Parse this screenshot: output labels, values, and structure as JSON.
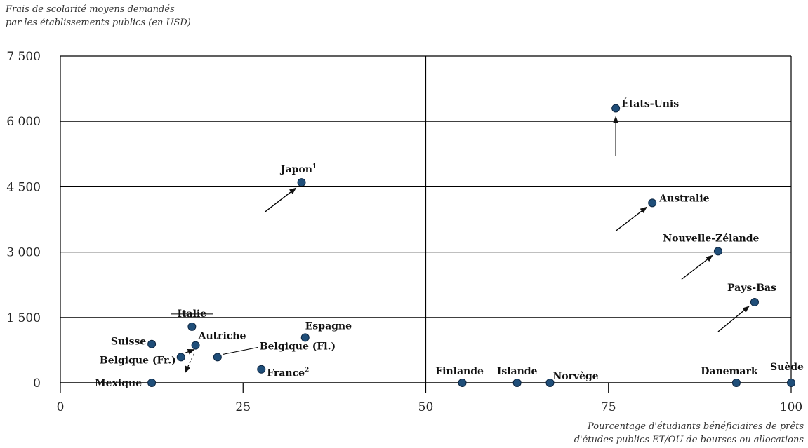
{
  "chart_data": {
    "type": "scatter",
    "ylabel_lines": [
      "Frais de scolarité moyens demandés",
      "par les établissements publics (en USD)"
    ],
    "xlabel_lines": [
      "Pourcentage d'étudiants bénéficiaires de prêts",
      "d'études publics ET/OU de bourses ou allocations"
    ],
    "xlim": [
      0,
      100
    ],
    "ylim": [
      0,
      7500
    ],
    "x_ticks": [
      0,
      25,
      50,
      75,
      100
    ],
    "x_tick_labels": [
      "0",
      "25",
      "50",
      "75",
      "100"
    ],
    "y_ticks": [
      0,
      1500,
      3000,
      4500,
      6000,
      7500
    ],
    "y_tick_labels": [
      "0",
      "1 500",
      "3 000",
      "4 500",
      "6 000",
      "7 500"
    ],
    "reference_lines": {
      "x": 50,
      "y": 3000
    },
    "marker_color": "#1f4e79",
    "points": [
      {
        "label": "États-Unis",
        "sup": "",
        "x": 76,
        "y": 6300
      },
      {
        "label": "Japon",
        "sup": "1",
        "x": 33,
        "y": 4600
      },
      {
        "label": "Australie",
        "sup": "",
        "x": 81,
        "y": 4130
      },
      {
        "label": "Nouvelle-Zélande",
        "sup": "",
        "x": 90,
        "y": 3020
      },
      {
        "label": "Pays-Bas",
        "sup": "",
        "x": 95,
        "y": 1850
      },
      {
        "label": "Italie",
        "sup": "",
        "x": 18,
        "y": 1290
      },
      {
        "label": "Espagne",
        "sup": "",
        "x": 33.5,
        "y": 1040
      },
      {
        "label": "Suisse",
        "sup": "",
        "x": 12.5,
        "y": 890
      },
      {
        "label": "Autriche",
        "sup": "",
        "x": 18.5,
        "y": 860
      },
      {
        "label": "Belgique (Fl.)",
        "sup": "",
        "x": 21.5,
        "y": 590
      },
      {
        "label": "Belgique (Fr.)",
        "sup": "",
        "x": 16.5,
        "y": 590
      },
      {
        "label": "France",
        "sup": "2",
        "x": 27.5,
        "y": 310
      },
      {
        "label": "Mexique",
        "sup": "",
        "x": 12.5,
        "y": 0
      },
      {
        "label": "Finlande",
        "sup": "",
        "x": 55,
        "y": 0
      },
      {
        "label": "Islande",
        "sup": "",
        "x": 62.5,
        "y": 0
      },
      {
        "label": "Norvège",
        "sup": "",
        "x": 67,
        "y": 0
      },
      {
        "label": "Danemark",
        "sup": "",
        "x": 92.5,
        "y": 0
      },
      {
        "label": "Suède",
        "sup": "",
        "x": 100,
        "y": 0
      }
    ]
  }
}
